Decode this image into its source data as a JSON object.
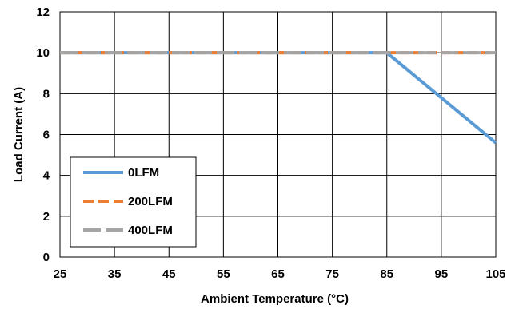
{
  "chart_data": {
    "type": "line",
    "xlabel": "Ambient Temperature (°C)",
    "ylabel": "Load Current (A)",
    "xlim": [
      25,
      105
    ],
    "ylim": [
      0,
      12
    ],
    "xticks": [
      25,
      35,
      45,
      55,
      65,
      75,
      85,
      95,
      105
    ],
    "yticks": [
      0,
      2,
      4,
      6,
      8,
      10,
      12
    ],
    "grid": true,
    "legend_position": "bottom-left",
    "series": [
      {
        "name": "0LFM",
        "color": "#5B9BD5",
        "dash": "solid",
        "x": [
          25,
          85,
          105
        ],
        "y": [
          10,
          10,
          5.6
        ]
      },
      {
        "name": "200LFM",
        "color": "#ED7D31",
        "dash": "dashed",
        "x": [
          25,
          105
        ],
        "y": [
          10,
          10
        ]
      },
      {
        "name": "400LFM",
        "color": "#A5A5A5",
        "dash": "longdash",
        "x": [
          25,
          105
        ],
        "y": [
          10,
          10
        ]
      }
    ]
  }
}
